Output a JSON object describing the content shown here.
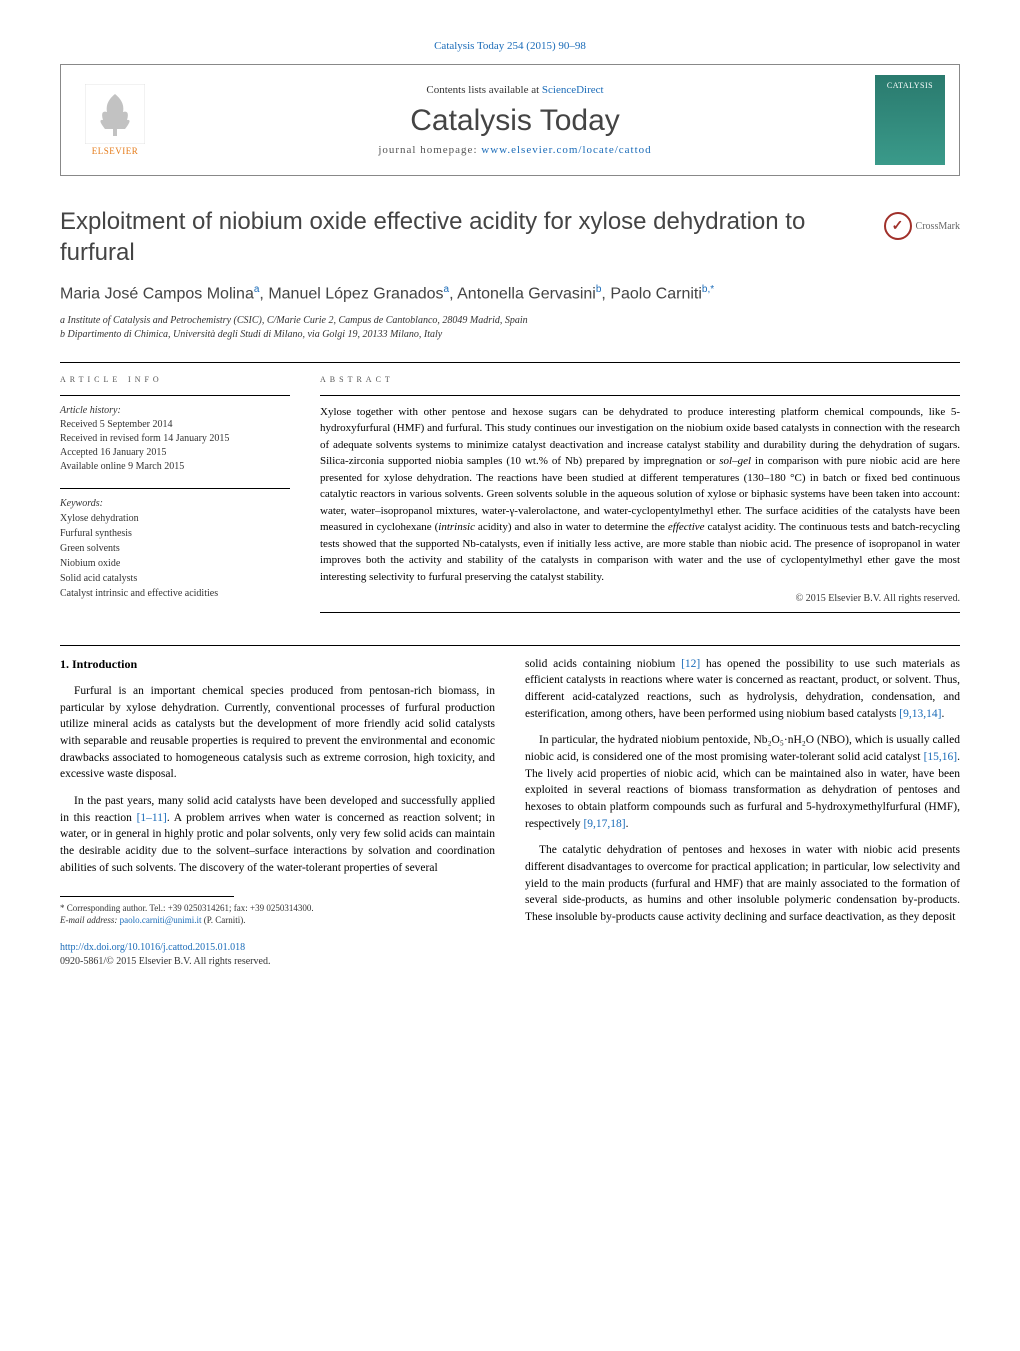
{
  "header": {
    "top_citation_link": "Catalysis Today 254 (2015) 90–98",
    "contents_prefix": "Contents lists available at ",
    "contents_link": "ScienceDirect",
    "journal_name": "Catalysis Today",
    "homepage_prefix": "journal homepage: ",
    "homepage_link": "www.elsevier.com/locate/cattod",
    "elsevier_label": "ELSEVIER",
    "cover_title": "CATALYSIS"
  },
  "crossmark_label": "CrossMark",
  "article": {
    "title": "Exploitment of niobium oxide effective acidity for xylose dehydration to furfural",
    "authors_html": "Maria José Campos Molina<sup>a</sup>, Manuel López Granados<sup>a</sup>, Antonella Gervasini<sup>b</sup>, Paolo Carniti<sup>b,*</sup>",
    "affiliations": [
      "a Institute of Catalysis and Petrochemistry (CSIC), C/Marie Curie 2, Campus de Cantoblanco, 28049 Madrid, Spain",
      "b Dipartimento di Chimica, Università degli Studi di Milano, via Golgi 19, 20133 Milano, Italy"
    ]
  },
  "info": {
    "header": "ARTICLE INFO",
    "history_label": "Article history:",
    "history": [
      "Received 5 September 2014",
      "Received in revised form 14 January 2015",
      "Accepted 16 January 2015",
      "Available online 9 March 2015"
    ],
    "keywords_label": "Keywords:",
    "keywords": [
      "Xylose dehydration",
      "Furfural synthesis",
      "Green solvents",
      "Niobium oxide",
      "Solid acid catalysts",
      "Catalyst intrinsic and effective acidities"
    ]
  },
  "abstract": {
    "header": "ABSTRACT",
    "text": "Xylose together with other pentose and hexose sugars can be dehydrated to produce interesting platform chemical compounds, like 5-hydroxyfurfural (HMF) and furfural. This study continues our investigation on the niobium oxide based catalysts in connection with the research of adequate solvents systems to minimize catalyst deactivation and increase catalyst stability and durability during the dehydration of sugars. Silica-zirconia supported niobia samples (10 wt.% of Nb) prepared by impregnation or sol–gel in comparison with pure niobic acid are here presented for xylose dehydration. The reactions have been studied at different temperatures (130–180 °C) in batch or fixed bed continuous catalytic reactors in various solvents. Green solvents soluble in the aqueous solution of xylose or biphasic systems have been taken into account: water, water–isopropanol mixtures, water-γ-valerolactone, and water-cyclopentylmethyl ether. The surface acidities of the catalysts have been measured in cyclohexane (intrinsic acidity) and also in water to determine the effective catalyst acidity. The continuous tests and batch-recycling tests showed that the supported Nb-catalysts, even if initially less active, are more stable than niobic acid. The presence of isopropanol in water improves both the activity and stability of the catalysts in comparison with water and the use of cyclopentylmethyl ether gave the most interesting selectivity to furfural preserving the catalyst stability.",
    "copyright": "© 2015 Elsevier B.V. All rights reserved."
  },
  "body": {
    "section_title": "1. Introduction",
    "left_paragraphs": [
      "Furfural is an important chemical species produced from pentosan-rich biomass, in particular by xylose dehydration. Currently, conventional processes of furfural production utilize mineral acids as catalysts but the development of more friendly acid solid catalysts with separable and reusable properties is required to prevent the environmental and economic drawbacks associated to homogeneous catalysis such as extreme corrosion, high toxicity, and excessive waste disposal.",
      "In the past years, many solid acid catalysts have been developed and successfully applied in this reaction [1–11]. A problem arrives when water is concerned as reaction solvent; in water, or in general in highly protic and polar solvents, only very few solid acids can maintain the desirable acidity due to the solvent–surface interactions by solvation and coordination abilities of such solvents. The discovery of the water-tolerant properties of several"
    ],
    "right_paragraphs": [
      "solid acids containing niobium [12] has opened the possibility to use such materials as efficient catalysts in reactions where water is concerned as reactant, product, or solvent. Thus, different acid-catalyzed reactions, such as hydrolysis, dehydration, condensation, and esterification, among others, have been performed using niobium based catalysts [9,13,14].",
      "In particular, the hydrated niobium pentoxide, Nb₂O₅·nH₂O (NBO), which is usually called niobic acid, is considered one of the most promising water-tolerant solid acid catalyst [15,16]. The lively acid properties of niobic acid, which can be maintained also in water, have been exploited in several reactions of biomass transformation as dehydration of pentoses and hexoses to obtain platform compounds such as furfural and 5-hydroxymethylfurfural (HMF), respectively [9,17,18].",
      "The catalytic dehydration of pentoses and hexoses in water with niobic acid presents different disadvantages to overcome for practical application; in particular, low selectivity and yield to the main products (furfural and HMF) that are mainly associated to the formation of several side-products, as humins and other insoluble polymeric condensation by-products. These insoluble by-products cause activity declining and surface deactivation, as they deposit"
    ],
    "refs": {
      "r1": "[1–11]",
      "r2": "[12]",
      "r3": "[9,13,14]",
      "r4": "[15,16]",
      "r5": "[9,17,18]"
    }
  },
  "footnote": {
    "corr_label": "* Corresponding author. Tel.: +39 0250314261; fax: +39 0250314300.",
    "email_label": "E-mail address: ",
    "email": "paolo.carniti@unimi.it",
    "email_suffix": " (P. Carniti)."
  },
  "footer": {
    "doi": "http://dx.doi.org/10.1016/j.cattod.2015.01.018",
    "issn": "0920-5861/© 2015 Elsevier B.V. All rights reserved."
  },
  "colors": {
    "link": "#1a6bb8",
    "elsevier_orange": "#e57b19",
    "text_gray": "#444444",
    "cover_bg": "#2a7a6e"
  }
}
